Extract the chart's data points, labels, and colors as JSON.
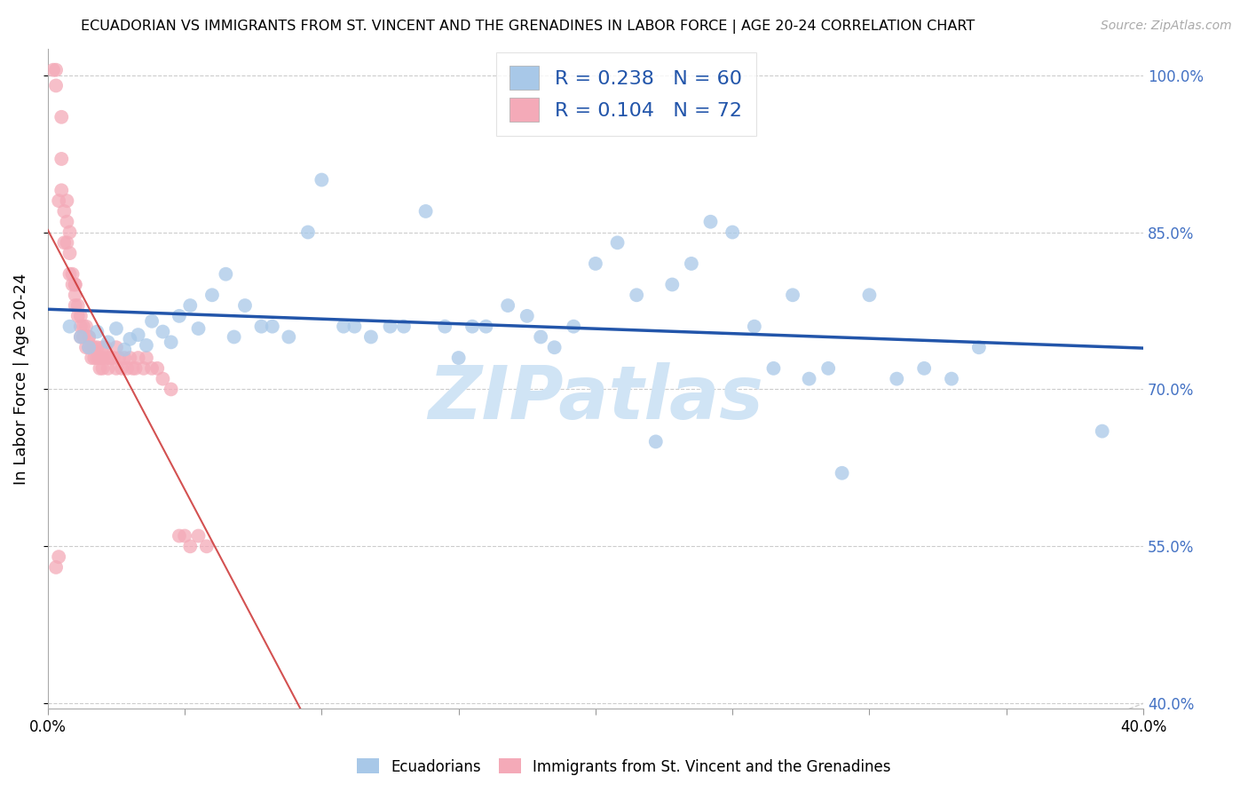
{
  "title": "ECUADORIAN VS IMMIGRANTS FROM ST. VINCENT AND THE GRENADINES IN LABOR FORCE | AGE 20-24 CORRELATION CHART",
  "source": "Source: ZipAtlas.com",
  "ylabel": "In Labor Force | Age 20-24",
  "xlim": [
    0.0,
    0.4
  ],
  "ylim": [
    0.395,
    1.025
  ],
  "yticks": [
    0.4,
    0.55,
    0.7,
    0.85,
    1.0
  ],
  "ytick_labels": [
    "40.0%",
    "55.0%",
    "70.0%",
    "85.0%",
    "100.0%"
  ],
  "xtick_vals": [
    0.0,
    0.05,
    0.1,
    0.15,
    0.2,
    0.25,
    0.3,
    0.35,
    0.4
  ],
  "xtick_labels": [
    "0.0%",
    "",
    "",
    "",
    "",
    "",
    "",
    "",
    "40.0%"
  ],
  "blue_color": "#a8c8e8",
  "pink_color": "#f4aab8",
  "trend_blue_color": "#2255aa",
  "trend_pink_color": "#cc3333",
  "diag_color": "#cccccc",
  "R_blue": 0.238,
  "N_blue": 60,
  "R_pink": 0.104,
  "N_pink": 72,
  "legend_label_blue": "Ecuadorians",
  "legend_label_pink": "Immigrants from St. Vincent and the Grenadines",
  "legend_r_n_color": "#2255aa",
  "watermark": "ZIPatlas",
  "watermark_color": "#d0e4f5",
  "blue_x": [
    0.008,
    0.012,
    0.015,
    0.018,
    0.022,
    0.025,
    0.028,
    0.03,
    0.033,
    0.036,
    0.038,
    0.042,
    0.045,
    0.048,
    0.052,
    0.055,
    0.06,
    0.065,
    0.068,
    0.072,
    0.078,
    0.082,
    0.088,
    0.095,
    0.1,
    0.108,
    0.112,
    0.118,
    0.125,
    0.13,
    0.138,
    0.145,
    0.15,
    0.155,
    0.16,
    0.168,
    0.175,
    0.18,
    0.185,
    0.192,
    0.2,
    0.208,
    0.215,
    0.222,
    0.228,
    0.235,
    0.242,
    0.25,
    0.258,
    0.265,
    0.272,
    0.278,
    0.285,
    0.29,
    0.3,
    0.31,
    0.32,
    0.33,
    0.34,
    0.385
  ],
  "blue_y": [
    0.76,
    0.75,
    0.74,
    0.755,
    0.745,
    0.758,
    0.738,
    0.748,
    0.752,
    0.742,
    0.765,
    0.755,
    0.745,
    0.77,
    0.78,
    0.758,
    0.79,
    0.81,
    0.75,
    0.78,
    0.76,
    0.76,
    0.75,
    0.85,
    0.9,
    0.76,
    0.76,
    0.75,
    0.76,
    0.76,
    0.87,
    0.76,
    0.73,
    0.76,
    0.76,
    0.78,
    0.77,
    0.75,
    0.74,
    0.76,
    0.82,
    0.84,
    0.79,
    0.65,
    0.8,
    0.82,
    0.86,
    0.85,
    0.76,
    0.72,
    0.79,
    0.71,
    0.72,
    0.62,
    0.79,
    0.71,
    0.72,
    0.71,
    0.74,
    0.66
  ],
  "pink_x": [
    0.002,
    0.003,
    0.003,
    0.004,
    0.005,
    0.005,
    0.005,
    0.006,
    0.006,
    0.007,
    0.007,
    0.007,
    0.008,
    0.008,
    0.008,
    0.009,
    0.009,
    0.01,
    0.01,
    0.01,
    0.01,
    0.011,
    0.011,
    0.012,
    0.012,
    0.012,
    0.013,
    0.013,
    0.014,
    0.014,
    0.015,
    0.015,
    0.015,
    0.016,
    0.016,
    0.017,
    0.017,
    0.018,
    0.018,
    0.019,
    0.019,
    0.02,
    0.02,
    0.02,
    0.021,
    0.022,
    0.022,
    0.023,
    0.024,
    0.025,
    0.025,
    0.026,
    0.027,
    0.028,
    0.029,
    0.03,
    0.031,
    0.032,
    0.033,
    0.035,
    0.036,
    0.038,
    0.04,
    0.042,
    0.045,
    0.048,
    0.05,
    0.052,
    0.055,
    0.058,
    0.003,
    0.004
  ],
  "pink_y": [
    1.005,
    1.005,
    0.99,
    0.88,
    0.89,
    0.92,
    0.96,
    0.87,
    0.84,
    0.88,
    0.86,
    0.84,
    0.85,
    0.83,
    0.81,
    0.81,
    0.8,
    0.8,
    0.79,
    0.8,
    0.78,
    0.78,
    0.77,
    0.76,
    0.77,
    0.75,
    0.76,
    0.75,
    0.74,
    0.76,
    0.75,
    0.74,
    0.75,
    0.74,
    0.73,
    0.74,
    0.73,
    0.74,
    0.73,
    0.73,
    0.72,
    0.74,
    0.73,
    0.72,
    0.74,
    0.73,
    0.72,
    0.73,
    0.73,
    0.74,
    0.72,
    0.73,
    0.72,
    0.73,
    0.72,
    0.73,
    0.72,
    0.72,
    0.73,
    0.72,
    0.73,
    0.72,
    0.72,
    0.71,
    0.7,
    0.56,
    0.56,
    0.55,
    0.56,
    0.55,
    0.53,
    0.54
  ]
}
